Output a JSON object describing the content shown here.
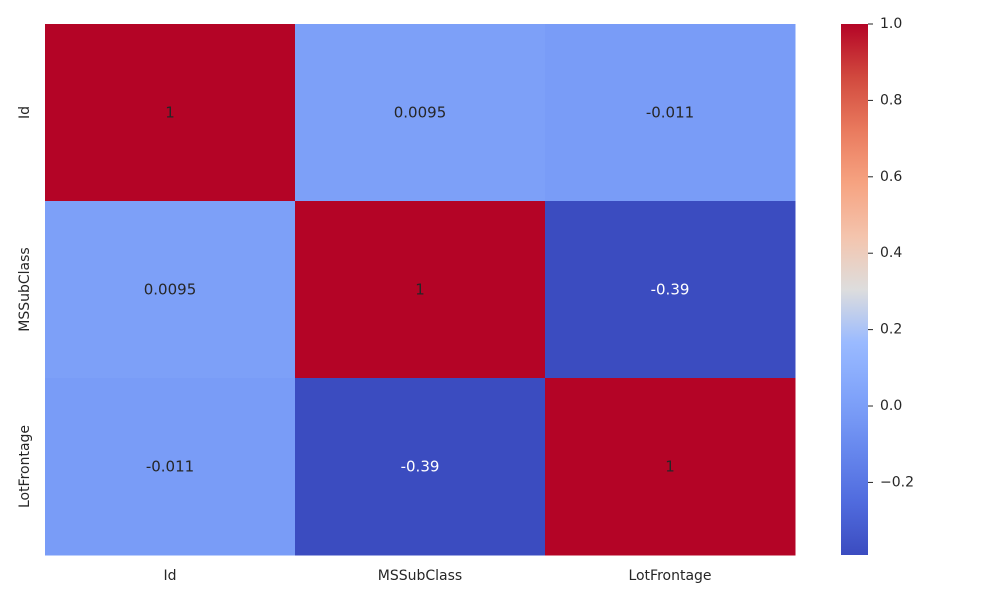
{
  "chart_data": {
    "type": "heatmap",
    "title": "",
    "xlabel": "",
    "ylabel": "",
    "x_categories": [
      "Id",
      "MSSubClass",
      "LotFrontage"
    ],
    "y_categories": [
      "Id",
      "MSSubClass",
      "LotFrontage"
    ],
    "values": [
      [
        1,
        0.0095,
        -0.011
      ],
      [
        0.0095,
        1,
        -0.39
      ],
      [
        -0.011,
        -0.39,
        1
      ]
    ],
    "annotations": [
      [
        "1",
        "0.0095",
        "-0.011"
      ],
      [
        "0.0095",
        "1",
        "-0.39"
      ],
      [
        "-0.011",
        "-0.39",
        "1"
      ]
    ],
    "colormap": "coolwarm",
    "vmin": -0.39,
    "vmax": 1.0,
    "colorbar": {
      "ticks": [
        1.0,
        0.8,
        0.6,
        0.4,
        0.2,
        0.0,
        -0.2
      ],
      "tick_labels": [
        "1.0",
        "0.8",
        "0.6",
        "0.4",
        "0.2",
        "0.0",
        "−0.2"
      ]
    }
  }
}
